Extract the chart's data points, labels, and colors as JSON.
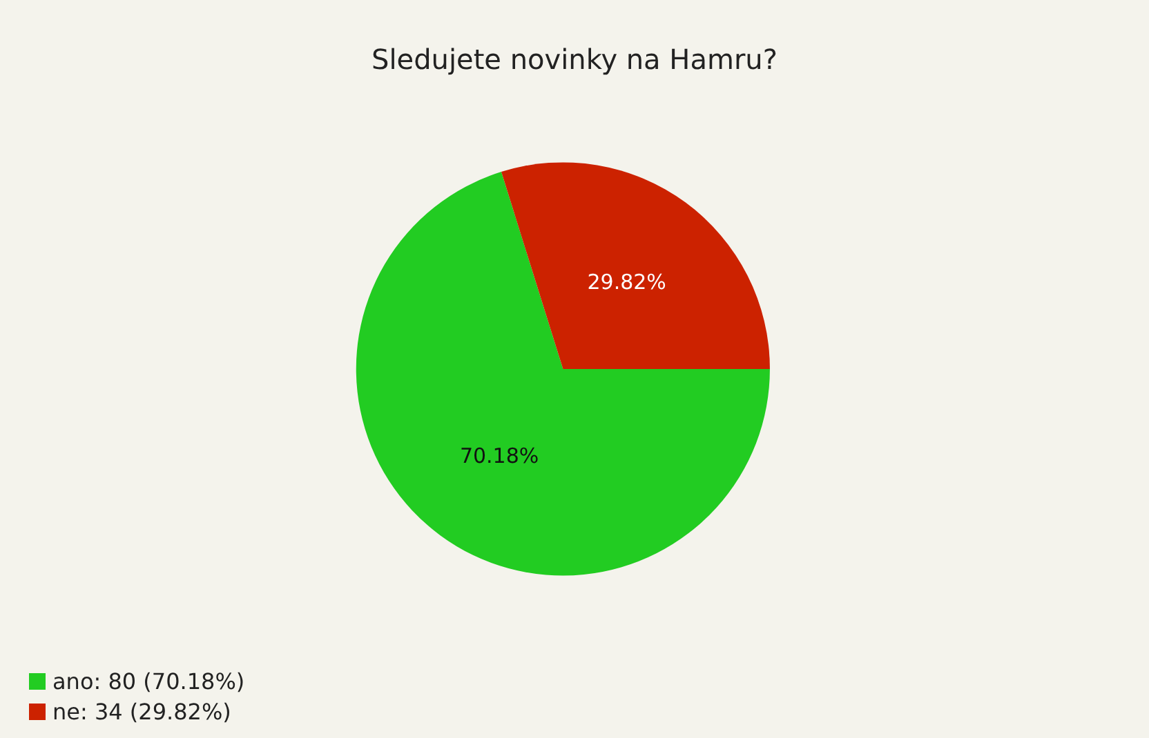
{
  "chart_data": {
    "type": "pie",
    "title": "Sledujete novinky na Hamru?",
    "categories": [
      "ano: 80 (70.18%)",
      "ne: 34 (29.82%)"
    ],
    "values": [
      70.18,
      29.82
    ],
    "value_labels": [
      "70.18%",
      "29.82%"
    ],
    "colors": [
      "#22cc22",
      "#cc2200"
    ],
    "legend": "bottom left"
  }
}
